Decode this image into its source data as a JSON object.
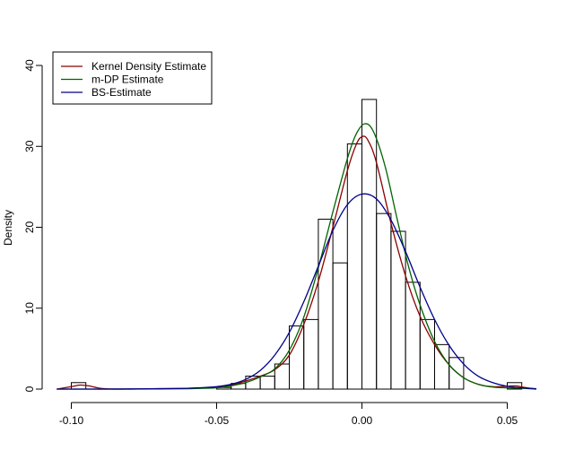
{
  "chart_data": {
    "type": "histogram",
    "title": "",
    "xlabel": "",
    "ylabel": "Density",
    "xlim": [
      -0.1,
      0.06
    ],
    "ylim": [
      0,
      40
    ],
    "x_ticks": [
      -0.1,
      -0.05,
      0.0,
      0.05
    ],
    "x_tick_labels": [
      "-0.10",
      "-0.05",
      "0.00",
      "0.05"
    ],
    "y_ticks": [
      0,
      10,
      20,
      30,
      40
    ],
    "y_tick_labels": [
      "0",
      "10",
      "20",
      "30",
      "40"
    ],
    "grid": false,
    "histogram": {
      "bin_edges": [
        -0.1,
        -0.095,
        -0.09,
        -0.085,
        -0.08,
        -0.075,
        -0.07,
        -0.065,
        -0.06,
        -0.055,
        -0.05,
        -0.045,
        -0.04,
        -0.035,
        -0.03,
        -0.025,
        -0.02,
        -0.015,
        -0.01,
        -0.005,
        0.0,
        0.005,
        0.01,
        0.015,
        0.02,
        0.025,
        0.03,
        0.035,
        0.04,
        0.045,
        0.05,
        0.055
      ],
      "densities": [
        0.8,
        0,
        0,
        0,
        0,
        0,
        0,
        0,
        0,
        0,
        0.2,
        0.7,
        1.6,
        1.6,
        3.1,
        7.8,
        8.6,
        21.0,
        15.6,
        30.3,
        35.8,
        21.7,
        19.5,
        13.2,
        8.6,
        5.5,
        3.9,
        0,
        0,
        0,
        0.8
      ]
    },
    "series": [
      {
        "name": "Kernel Density Estimate",
        "color": "#8b0000",
        "x": [
          -0.105,
          -0.1,
          -0.097,
          -0.094,
          -0.09,
          -0.085,
          -0.08,
          -0.07,
          -0.06,
          -0.05,
          -0.045,
          -0.04,
          -0.035,
          -0.03,
          -0.025,
          -0.02,
          -0.015,
          -0.01,
          -0.005,
          -0.002,
          0.0,
          0.002,
          0.005,
          0.01,
          0.015,
          0.02,
          0.025,
          0.03,
          0.035,
          0.04,
          0.045,
          0.05,
          0.053,
          0.056,
          0.06
        ],
        "y": [
          0.0,
          0.3,
          0.5,
          0.4,
          0.1,
          0.0,
          0.0,
          0.05,
          0.1,
          0.2,
          0.5,
          1.0,
          1.6,
          2.4,
          4.2,
          8.0,
          13.3,
          20.0,
          27.0,
          30.2,
          31.2,
          30.8,
          28.0,
          20.5,
          14.0,
          9.0,
          5.5,
          3.0,
          1.4,
          0.6,
          0.3,
          0.35,
          0.4,
          0.2,
          0.0
        ]
      },
      {
        "name": "m-DP Estimate",
        "color": "#006400",
        "x": [
          -0.105,
          -0.09,
          -0.08,
          -0.07,
          -0.06,
          -0.05,
          -0.045,
          -0.04,
          -0.035,
          -0.03,
          -0.025,
          -0.02,
          -0.015,
          -0.01,
          -0.005,
          -0.002,
          0.001,
          0.004,
          0.008,
          0.012,
          0.016,
          0.02,
          0.025,
          0.03,
          0.035,
          0.04,
          0.045,
          0.05,
          0.055,
          0.06
        ],
        "y": [
          0.0,
          0.0,
          0.0,
          0.02,
          0.05,
          0.15,
          0.4,
          0.8,
          1.5,
          2.5,
          4.8,
          8.9,
          15.0,
          21.9,
          28.5,
          31.5,
          32.8,
          31.8,
          27.5,
          21.2,
          15.2,
          10.4,
          5.9,
          3.0,
          1.4,
          0.6,
          0.25,
          0.15,
          0.1,
          0.0
        ]
      },
      {
        "name": "BS-Estimate",
        "color": "#00008b",
        "x": [
          -0.105,
          -0.09,
          -0.08,
          -0.07,
          -0.06,
          -0.05,
          -0.045,
          -0.04,
          -0.035,
          -0.03,
          -0.025,
          -0.02,
          -0.015,
          -0.01,
          -0.005,
          0.0,
          0.005,
          0.01,
          0.015,
          0.02,
          0.025,
          0.03,
          0.035,
          0.04,
          0.045,
          0.05,
          0.055,
          0.06
        ],
        "y": [
          0.0,
          0.0,
          0.02,
          0.05,
          0.1,
          0.3,
          0.6,
          1.2,
          2.3,
          4.2,
          7.0,
          10.8,
          15.2,
          19.6,
          22.8,
          24.1,
          23.5,
          20.9,
          17.0,
          12.6,
          8.6,
          5.4,
          3.1,
          1.6,
          0.8,
          0.35,
          0.15,
          0.05
        ]
      }
    ],
    "legend": {
      "position": "top-left",
      "entries": [
        "Kernel Density Estimate",
        "m-DP Estimate",
        "BS-Estimate"
      ]
    }
  }
}
